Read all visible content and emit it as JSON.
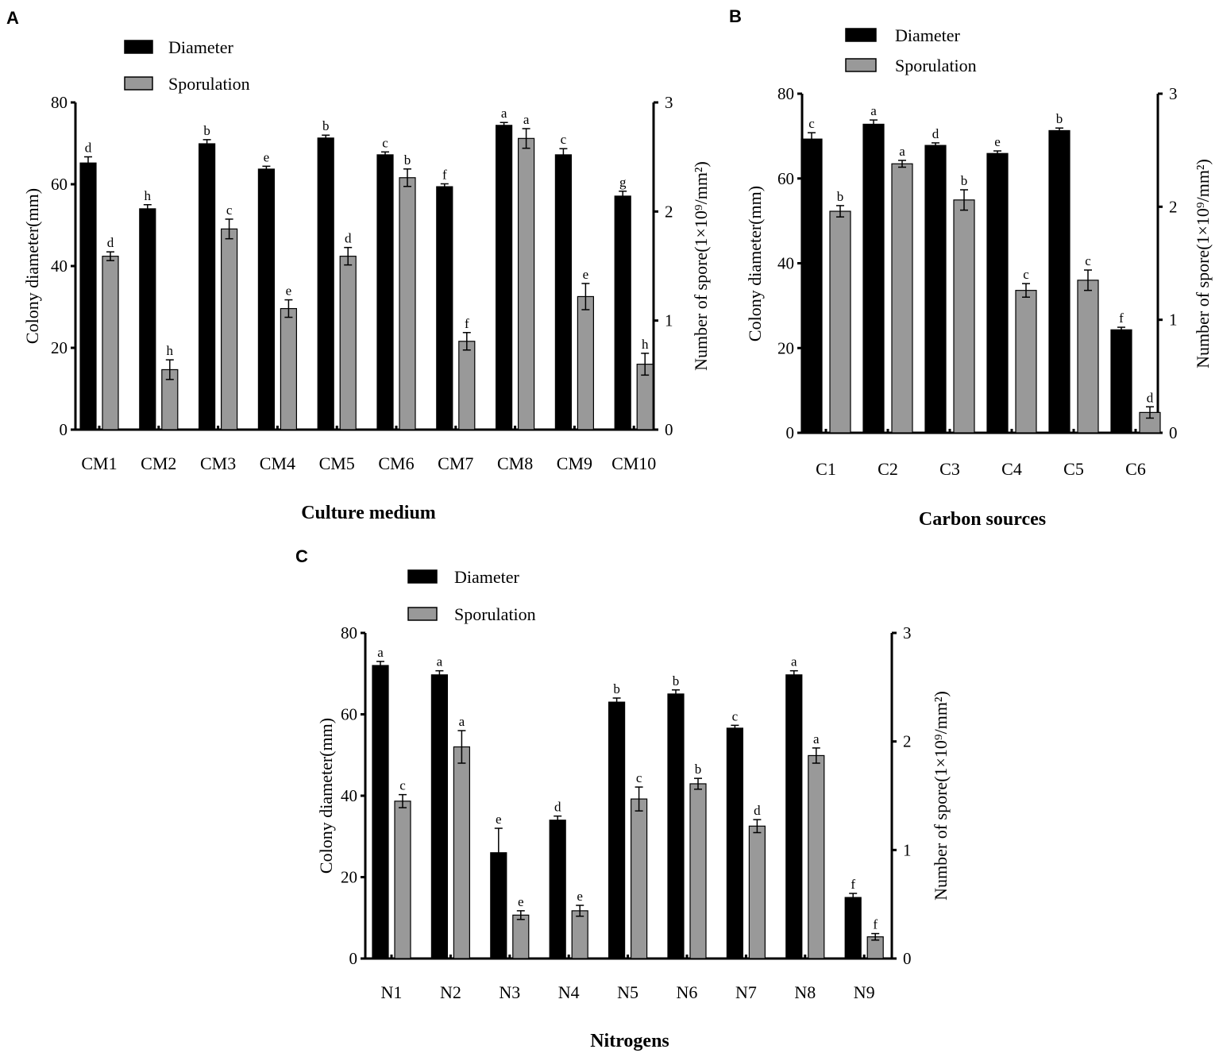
{
  "chart_data": [
    {
      "type": "bar",
      "panel": "A",
      "xlabel": "Culture medium",
      "ylabel": "Colony diameter(mm)",
      "ylabel_right": "Number of spore(1×10⁹/mm²)",
      "ylim": [
        0,
        80
      ],
      "ylim_right": [
        0,
        3
      ],
      "yticks": [
        "0",
        "20",
        "40",
        "60",
        "80"
      ],
      "yticks_right": [
        "0",
        "1",
        "2",
        "3"
      ],
      "legend": [
        "Diameter",
        "Sporulation"
      ],
      "legend_position": "top-left",
      "categories": [
        "CM1",
        "CM2",
        "CM3",
        "CM4",
        "CM5",
        "CM6",
        "CM7",
        "CM8",
        "CM9",
        "CM10"
      ],
      "series": [
        {
          "name": "Diameter",
          "axis": "left",
          "color": "#000000",
          "values": [
            65.2,
            54,
            69.9,
            63.7,
            71.3,
            67.2,
            59.4,
            74.4,
            67.2,
            57.1
          ],
          "errors": [
            1.5,
            1,
            1,
            0.7,
            0.7,
            0.7,
            0.7,
            0.7,
            1.5,
            1.2
          ],
          "letters": [
            "d",
            "h",
            "b",
            "e",
            "b",
            "c",
            "f",
            "a",
            "c",
            "g"
          ]
        },
        {
          "name": "Sporulation",
          "axis": "right",
          "color": "#999999",
          "values": [
            1.59,
            0.55,
            1.84,
            1.11,
            1.59,
            2.31,
            0.81,
            2.67,
            1.22,
            0.6
          ],
          "errors": [
            0.04,
            0.09,
            0.09,
            0.08,
            0.08,
            0.08,
            0.08,
            0.09,
            0.12,
            0.1
          ],
          "letters": [
            "d",
            "h",
            "c",
            "e",
            "d",
            "b",
            "f",
            "a",
            "e",
            "h"
          ]
        }
      ]
    },
    {
      "type": "bar",
      "panel": "B",
      "xlabel": "Carbon sources",
      "ylabel": "Colony diameter(mm)",
      "ylabel_right": "Number of spore(1×10⁹/mm²)",
      "ylim": [
        0,
        80
      ],
      "ylim_right": [
        0,
        3
      ],
      "yticks": [
        "0",
        "20",
        "40",
        "60",
        "80"
      ],
      "yticks_right": [
        "0",
        "1",
        "2",
        "3"
      ],
      "legend": [
        "Diameter",
        "Sporulation"
      ],
      "legend_position": "top-left",
      "categories": [
        "C1",
        "C2",
        "C3",
        "C4",
        "C5",
        "C6"
      ],
      "series": [
        {
          "name": "Diameter",
          "axis": "left",
          "color": "#000000",
          "values": [
            69.3,
            72.8,
            67.8,
            65.9,
            71.3,
            24.3
          ],
          "errors": [
            1.5,
            1,
            0.6,
            0.6,
            0.6,
            0.6
          ],
          "letters": [
            "c",
            "a",
            "d",
            "e",
            "b",
            "f"
          ]
        },
        {
          "name": "Sporulation",
          "axis": "right",
          "color": "#999999",
          "values": [
            1.96,
            2.38,
            2.06,
            1.26,
            1.35,
            0.18
          ],
          "errors": [
            0.05,
            0.03,
            0.09,
            0.06,
            0.09,
            0.05
          ],
          "letters": [
            "b",
            "a",
            "b",
            "c",
            "c",
            "d"
          ]
        }
      ]
    },
    {
      "type": "bar",
      "panel": "C",
      "xlabel": "Nitrogens",
      "ylabel": "Colony diameter(mm)",
      "ylabel_right": "Number of spore(1×10⁹/mm²)",
      "ylim": [
        0,
        80
      ],
      "ylim_right": [
        0,
        3
      ],
      "yticks": [
        "0",
        "20",
        "40",
        "60",
        "80"
      ],
      "yticks_right": [
        "0",
        "1",
        "2",
        "3"
      ],
      "legend": [
        "Diameter",
        "Sporulation"
      ],
      "legend_position": "top-left",
      "categories": [
        "N1",
        "N2",
        "N3",
        "N4",
        "N5",
        "N6",
        "N7",
        "N8",
        "N9"
      ],
      "series": [
        {
          "name": "Diameter",
          "axis": "left",
          "color": "#000000",
          "values": [
            72,
            69.7,
            26,
            34,
            63,
            65,
            56.6,
            69.7,
            15
          ],
          "errors": [
            1,
            1,
            6,
            1,
            1,
            1,
            0.7,
            1,
            1
          ],
          "letters": [
            "a",
            "a",
            "e",
            "d",
            "b",
            "b",
            "c",
            "a",
            "f"
          ]
        },
        {
          "name": "Sporulation",
          "axis": "right",
          "color": "#999999",
          "values": [
            1.45,
            1.95,
            0.4,
            0.44,
            1.47,
            1.61,
            1.22,
            1.87,
            0.2
          ],
          "errors": [
            0.06,
            0.15,
            0.04,
            0.05,
            0.11,
            0.05,
            0.06,
            0.07,
            0.03
          ],
          "letters": [
            "c",
            "a",
            "e",
            "e",
            "c",
            "b",
            "d",
            "a",
            "f"
          ]
        }
      ]
    }
  ]
}
